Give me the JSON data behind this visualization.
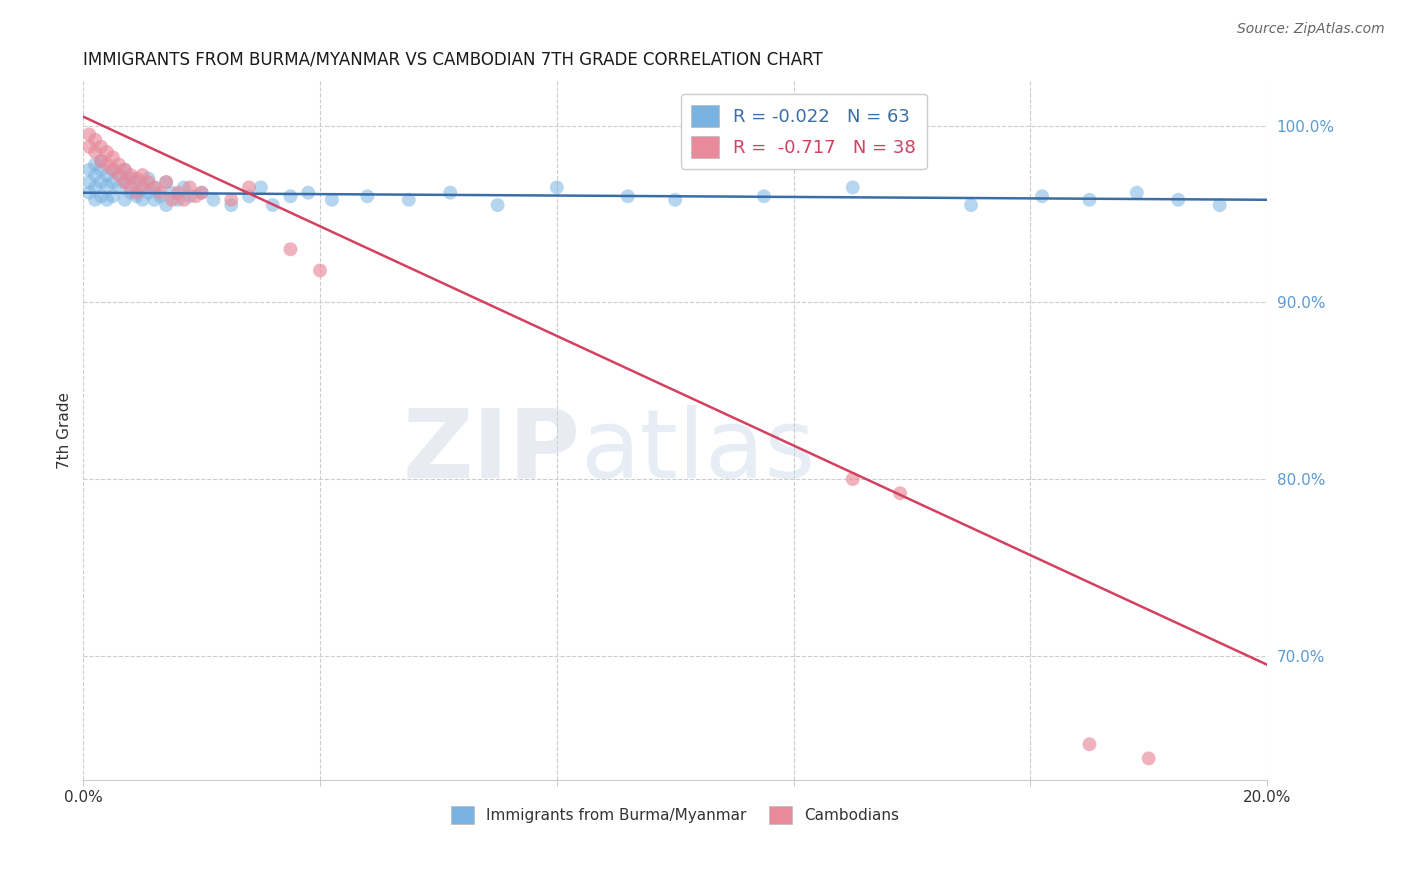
{
  "title": "IMMIGRANTS FROM BURMA/MYANMAR VS CAMBODIAN 7TH GRADE CORRELATION CHART",
  "source": "Source: ZipAtlas.com",
  "ylabel": "7th Grade",
  "legend_label_blue": "Immigrants from Burma/Myanmar",
  "legend_label_pink": "Cambodians",
  "blue_R": -0.022,
  "blue_N": 63,
  "pink_R": -0.717,
  "pink_N": 38,
  "xlim": [
    0.0,
    0.2
  ],
  "ylim": [
    0.63,
    1.025
  ],
  "xticks": [
    0.0,
    0.04,
    0.08,
    0.12,
    0.16,
    0.2
  ],
  "yticks_right": [
    0.7,
    0.8,
    0.9,
    1.0
  ],
  "ytick_labels_right": [
    "70.0%",
    "80.0%",
    "90.0%",
    "100.0%"
  ],
  "blue_color": "#7ab3e0",
  "pink_color": "#e88a9a",
  "blue_line_color": "#3a6ea8",
  "pink_line_color": "#d44060",
  "blue_line_y0": 0.962,
  "blue_line_y1": 0.958,
  "pink_line_y0": 1.005,
  "pink_line_y1": 0.695,
  "blue_scatter_x": [
    0.001,
    0.001,
    0.001,
    0.002,
    0.002,
    0.002,
    0.002,
    0.003,
    0.003,
    0.003,
    0.003,
    0.004,
    0.004,
    0.004,
    0.005,
    0.005,
    0.005,
    0.006,
    0.006,
    0.007,
    0.007,
    0.007,
    0.008,
    0.008,
    0.009,
    0.009,
    0.01,
    0.01,
    0.011,
    0.011,
    0.012,
    0.012,
    0.013,
    0.014,
    0.014,
    0.015,
    0.016,
    0.017,
    0.018,
    0.02,
    0.022,
    0.025,
    0.028,
    0.03,
    0.032,
    0.035,
    0.038,
    0.042,
    0.048,
    0.055,
    0.062,
    0.07,
    0.08,
    0.092,
    0.1,
    0.115,
    0.13,
    0.15,
    0.162,
    0.17,
    0.178,
    0.185,
    0.192
  ],
  "blue_scatter_y": [
    0.975,
    0.968,
    0.962,
    0.978,
    0.972,
    0.965,
    0.958,
    0.98,
    0.975,
    0.968,
    0.96,
    0.972,
    0.966,
    0.958,
    0.975,
    0.968,
    0.96,
    0.972,
    0.965,
    0.975,
    0.968,
    0.958,
    0.97,
    0.962,
    0.968,
    0.96,
    0.965,
    0.958,
    0.97,
    0.962,
    0.958,
    0.965,
    0.96,
    0.968,
    0.955,
    0.962,
    0.958,
    0.965,
    0.96,
    0.962,
    0.958,
    0.955,
    0.96,
    0.965,
    0.955,
    0.96,
    0.962,
    0.958,
    0.96,
    0.958,
    0.962,
    0.955,
    0.965,
    0.96,
    0.958,
    0.96,
    0.965,
    0.955,
    0.96,
    0.958,
    0.962,
    0.958,
    0.955
  ],
  "pink_scatter_x": [
    0.001,
    0.001,
    0.002,
    0.002,
    0.003,
    0.003,
    0.004,
    0.004,
    0.005,
    0.005,
    0.006,
    0.006,
    0.007,
    0.007,
    0.008,
    0.008,
    0.009,
    0.009,
    0.01,
    0.01,
    0.011,
    0.012,
    0.013,
    0.014,
    0.015,
    0.016,
    0.017,
    0.018,
    0.019,
    0.02,
    0.025,
    0.028,
    0.035,
    0.04,
    0.13,
    0.138,
    0.17,
    0.18
  ],
  "pink_scatter_y": [
    0.995,
    0.988,
    0.992,
    0.985,
    0.988,
    0.98,
    0.985,
    0.978,
    0.982,
    0.975,
    0.978,
    0.972,
    0.975,
    0.968,
    0.972,
    0.965,
    0.97,
    0.962,
    0.972,
    0.965,
    0.968,
    0.965,
    0.962,
    0.968,
    0.958,
    0.962,
    0.958,
    0.965,
    0.96,
    0.962,
    0.958,
    0.965,
    0.93,
    0.918,
    0.8,
    0.792,
    0.65,
    0.642
  ]
}
